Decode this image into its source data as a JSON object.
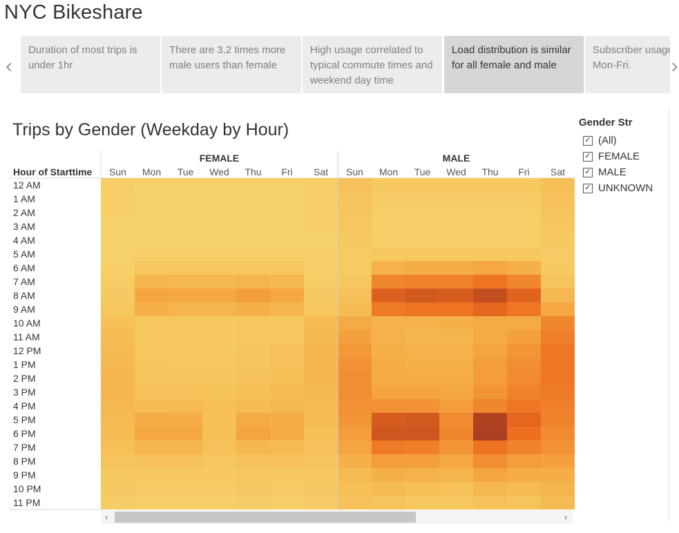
{
  "app_title": "NYC Bikeshare",
  "story": {
    "prev_icon": "chevron-left-icon",
    "next_icon": "chevron-right-icon",
    "points": [
      {
        "text": "Duration of most trips is under 1hr",
        "active": false
      },
      {
        "text": "There are 3.2 times more male users than female",
        "active": false
      },
      {
        "text": "High usage correlated to typical commute times and weekend day time",
        "active": false
      },
      {
        "text": "Load distribution is similar for all female and male",
        "active": true
      },
      {
        "text": "Subscriber usage Mon-Fri.",
        "active": false
      }
    ]
  },
  "sheet_title": "Trips by Gender (Weekday by Hour)",
  "chart_data": {
    "type": "heatmap",
    "title": "Trips by Gender (Weekday by Hour)",
    "row_header": "Hour of Starttime",
    "rows": [
      "12 AM",
      "1 AM",
      "2 AM",
      "3 AM",
      "4 AM",
      "5 AM",
      "6 AM",
      "7 AM",
      "8 AM",
      "9 AM",
      "10 AM",
      "11 AM",
      "12 PM",
      "1 PM",
      "2 PM",
      "3 PM",
      "4 PM",
      "5 PM",
      "6 PM",
      "7 PM",
      "8 PM",
      "9 PM",
      "10 PM",
      "11 PM"
    ],
    "groups": [
      "FEMALE",
      "MALE"
    ],
    "columns": [
      "Sun",
      "Mon",
      "Tue",
      "Wed",
      "Thu",
      "Fri",
      "Sat"
    ],
    "color_scale": [
      "#f6d36b",
      "#f5a943",
      "#ec6b1e",
      "#a23a22"
    ],
    "intensity_scale": [
      0,
      100
    ],
    "values": {
      "FEMALE": [
        [
          4,
          2,
          2,
          2,
          2,
          2,
          3
        ],
        [
          3,
          2,
          2,
          2,
          2,
          2,
          3
        ],
        [
          3,
          2,
          2,
          2,
          2,
          2,
          3
        ],
        [
          2,
          2,
          2,
          2,
          2,
          2,
          3
        ],
        [
          2,
          2,
          2,
          2,
          2,
          2,
          2
        ],
        [
          2,
          3,
          3,
          3,
          3,
          3,
          3
        ],
        [
          3,
          10,
          10,
          10,
          10,
          10,
          3
        ],
        [
          5,
          24,
          22,
          22,
          24,
          22,
          5
        ],
        [
          7,
          36,
          34,
          34,
          40,
          34,
          7
        ],
        [
          10,
          28,
          24,
          24,
          28,
          24,
          10
        ],
        [
          16,
          10,
          9,
          9,
          10,
          9,
          20
        ],
        [
          18,
          9,
          8,
          8,
          10,
          10,
          22
        ],
        [
          20,
          10,
          9,
          9,
          12,
          14,
          24
        ],
        [
          22,
          11,
          10,
          10,
          12,
          14,
          24
        ],
        [
          24,
          12,
          11,
          11,
          14,
          16,
          24
        ],
        [
          24,
          14,
          14,
          13,
          16,
          18,
          22
        ],
        [
          22,
          18,
          20,
          16,
          20,
          22,
          20
        ],
        [
          20,
          30,
          30,
          16,
          32,
          30,
          18
        ],
        [
          18,
          34,
          34,
          16,
          36,
          30,
          16
        ],
        [
          15,
          24,
          24,
          14,
          22,
          20,
          14
        ],
        [
          12,
          14,
          14,
          10,
          14,
          14,
          12
        ],
        [
          9,
          9,
          9,
          8,
          10,
          9,
          9
        ],
        [
          7,
          6,
          6,
          6,
          7,
          6,
          7
        ],
        [
          5,
          4,
          4,
          4,
          5,
          4,
          6
        ]
      ],
      "MALE": [
        [
          14,
          8,
          8,
          8,
          8,
          8,
          16
        ],
        [
          12,
          6,
          6,
          6,
          6,
          6,
          14
        ],
        [
          11,
          4,
          4,
          4,
          4,
          4,
          12
        ],
        [
          10,
          4,
          4,
          4,
          4,
          4,
          10
        ],
        [
          8,
          4,
          4,
          4,
          4,
          4,
          8
        ],
        [
          6,
          8,
          8,
          8,
          8,
          8,
          6
        ],
        [
          6,
          26,
          30,
          30,
          34,
          28,
          8
        ],
        [
          10,
          52,
          55,
          55,
          62,
          52,
          12
        ],
        [
          14,
          74,
          78,
          76,
          86,
          72,
          22
        ],
        [
          18,
          58,
          62,
          62,
          70,
          60,
          34
        ],
        [
          32,
          26,
          26,
          28,
          32,
          32,
          52
        ],
        [
          38,
          26,
          24,
          24,
          32,
          38,
          56
        ],
        [
          42,
          28,
          26,
          26,
          36,
          44,
          60
        ],
        [
          46,
          30,
          28,
          28,
          40,
          48,
          60
        ],
        [
          48,
          30,
          30,
          30,
          40,
          50,
          60
        ],
        [
          48,
          36,
          36,
          34,
          44,
          54,
          58
        ],
        [
          46,
          46,
          46,
          40,
          52,
          60,
          56
        ],
        [
          44,
          76,
          78,
          50,
          94,
          70,
          54
        ],
        [
          40,
          80,
          80,
          52,
          96,
          64,
          50
        ],
        [
          36,
          58,
          56,
          44,
          62,
          54,
          46
        ],
        [
          28,
          40,
          40,
          34,
          48,
          40,
          38
        ],
        [
          20,
          28,
          26,
          24,
          36,
          30,
          30
        ],
        [
          16,
          18,
          16,
          14,
          22,
          20,
          24
        ],
        [
          14,
          12,
          10,
          10,
          14,
          12,
          20
        ]
      ]
    }
  },
  "filter": {
    "title": "Gender Str",
    "items": [
      {
        "label": "(All)",
        "checked": true
      },
      {
        "label": "FEMALE",
        "checked": true
      },
      {
        "label": "MALE",
        "checked": true
      },
      {
        "label": "UNKNOWN",
        "checked": true
      }
    ]
  },
  "scrollbar": {
    "left_icon": "scroll-left-arrow-icon",
    "right_icon": "scroll-right-arrow-icon"
  }
}
